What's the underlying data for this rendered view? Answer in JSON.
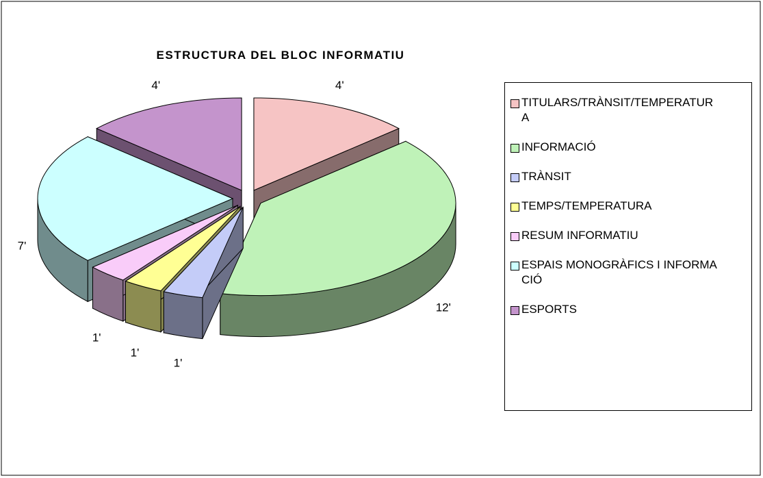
{
  "chart_data": {
    "type": "pie",
    "title": "ESTRUCTURA DEL BLOC INFORMATIU",
    "categories": [
      "TITULARS/TRÀNSIT/TEMPERATURA",
      "INFORMACIÓ",
      "TRÀNSIT",
      "TEMPS/TEMPERATURA",
      "RESUM INFORMATIU",
      "ESPAIS MONOGRÀFICS I INFORMACIÓ",
      "ESPORTS"
    ],
    "values": [
      4,
      12,
      1,
      1,
      1,
      7,
      4
    ],
    "value_labels": [
      "4'",
      "12'",
      "1'",
      "1'",
      "1'",
      "7'",
      "4'"
    ],
    "colors": [
      "#f6c4c4",
      "#bff2b8",
      "#c4ccf8",
      "#ffff94",
      "#f9ccf9",
      "#ccffff",
      "#c494cc"
    ],
    "legend": "right"
  }
}
